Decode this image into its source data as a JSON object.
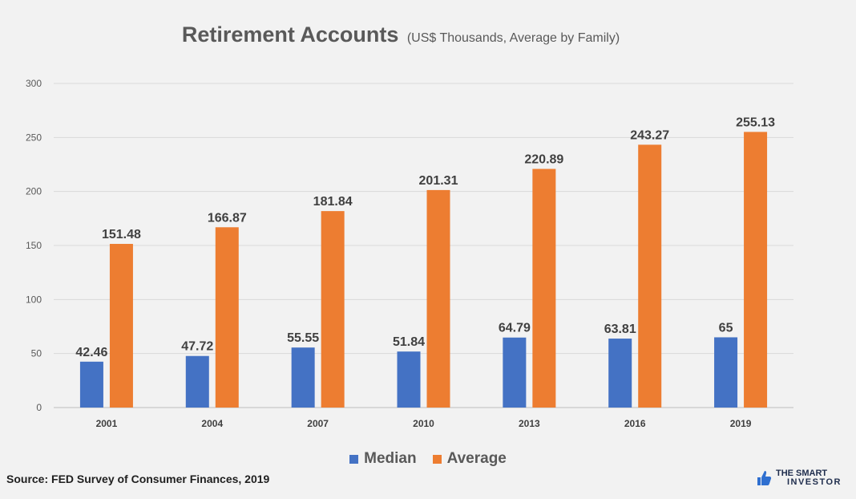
{
  "chart_data": {
    "type": "bar",
    "title": "Retirement Accounts",
    "subtitle": "(US$ Thousands, Average by Family)",
    "categories": [
      "2001",
      "2004",
      "2007",
      "2010",
      "2013",
      "2016",
      "2019"
    ],
    "series": [
      {
        "name": "Median",
        "color": "#4472c4",
        "values": [
          42.46,
          47.72,
          55.55,
          51.84,
          64.79,
          63.81,
          65
        ]
      },
      {
        "name": "Average",
        "color": "#ed7d31",
        "values": [
          151.48,
          166.87,
          181.84,
          201.31,
          220.89,
          243.27,
          255.13
        ]
      }
    ],
    "data_labels": {
      "Median": [
        "42.46",
        "47.72",
        "55.55",
        "51.84",
        "64.79",
        "63.81",
        "65"
      ],
      "Average": [
        "151.48",
        "166.87",
        "181.84",
        "201.31",
        "220.89",
        "243.27",
        "255.13"
      ]
    },
    "ylim": [
      0,
      300
    ],
    "yticks": [
      0,
      50,
      100,
      150,
      200,
      250,
      300
    ],
    "grid": true,
    "legend_position": "bottom"
  },
  "source": "Source: FED Survey of Consumer Finances, 2019",
  "brand": {
    "line1": "THE SMART",
    "line2": "INVESTOR",
    "icon": "thumbs-up-icon"
  }
}
